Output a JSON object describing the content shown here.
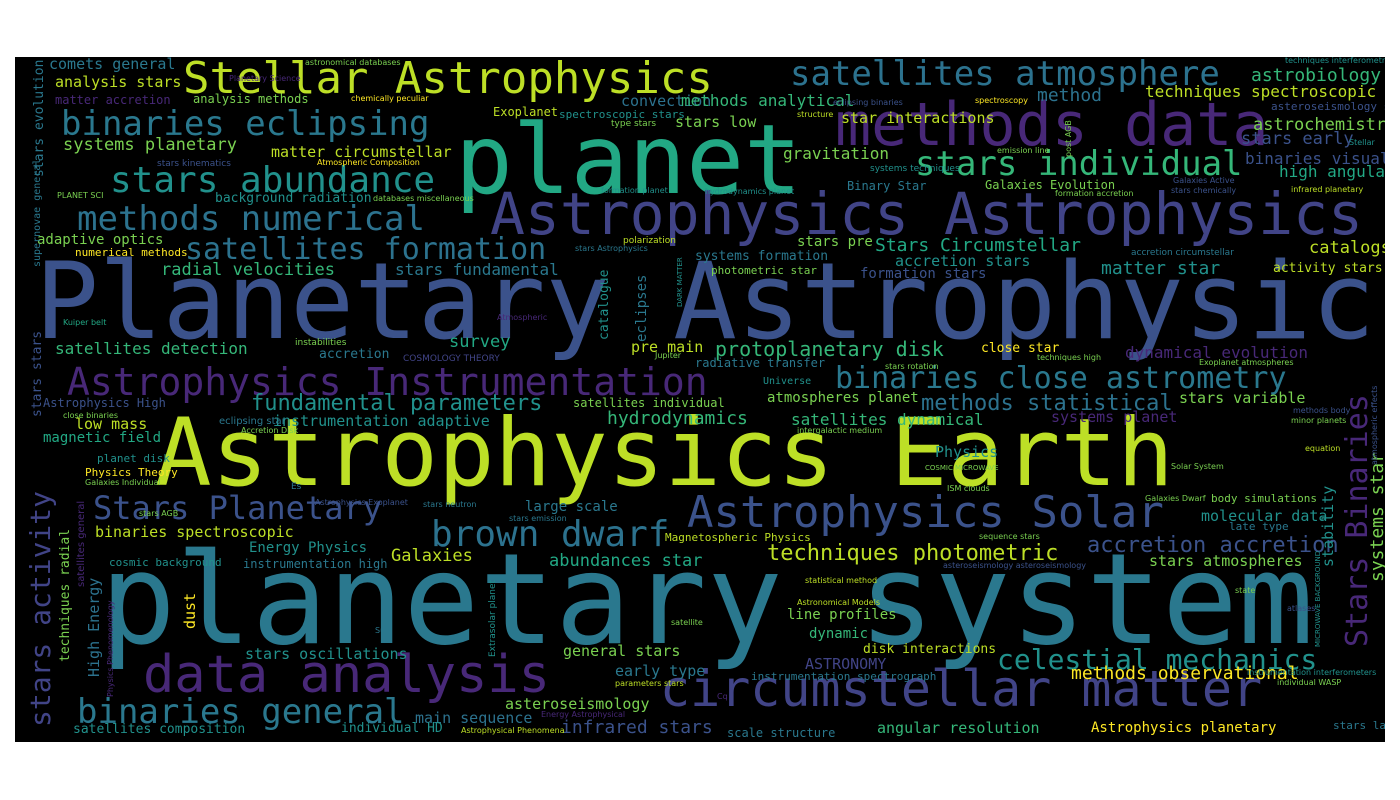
{
  "colors": {
    "background": "#000000",
    "c1": "#bddf26",
    "c2": "#2a788e",
    "c3": "#3b528b",
    "c4": "#482878",
    "c5": "#22a884",
    "c6": "#7ad151",
    "c7": "#fde725",
    "c8": "#440154",
    "c9": "#21918c",
    "c10": "#414487",
    "c11": "#35b779",
    "c12": "#2c728e"
  },
  "words": {
    "w001": "Planetary Astrophysics",
    "w002": "planetary system",
    "w003": "Astrophysics Earth",
    "w004": "planet",
    "w005": "Astrophysics Astrophysics",
    "w006": "methods data",
    "w007": "circumstellar matter",
    "w008": "data analysis",
    "w009": "Stellar Astrophysics",
    "w010": "Astrophysics Instrumentation",
    "w011": "Astrophysics Solar",
    "w012": "satellites atmosphere",
    "w013": "binaries eclipsing",
    "w014": "stars abundance",
    "w015": "stars individual",
    "w016": "methods numerical",
    "w017": "binaries close astrometry",
    "w018": "Stars Planetary",
    "w019": "brown dwarf",
    "w020": "celestial mechanics",
    "w021": "binaries general",
    "w022": "satellites formation",
    "w023": "stars activity",
    "w024": "Stars Binaries",
    "w025": "techniques photometric",
    "w026": "fundamental parameters",
    "w027": "methods statistical",
    "w028": "protoplanetary disk",
    "w029": "accretion accretion",
    "w030": "methods observational",
    "w031": "astrobiology",
    "w032": "techniques spectroscopic",
    "w033": "astrochemistry",
    "w034": "stars early",
    "w035": "binaries visual",
    "w036": "high angular",
    "w037": "systems planetary",
    "w038": "matter circumstellar",
    "w039": "gravitation",
    "w040": "comets general",
    "w041": "analysis stars",
    "w042": "analysis methods",
    "w043": "convection",
    "w044": "methods analytical",
    "w045": "method",
    "w046": "star interactions",
    "w047": "stars low",
    "w048": "Exoplanet",
    "w049": "Stars Circumstellar",
    "w050": "catalogs",
    "w051": "matter star",
    "w052": "activity stars",
    "w053": "adaptive optics",
    "w054": "radial velocities",
    "w055": "stars fundamental",
    "w056": "stars pre",
    "w057": "accretion stars",
    "w058": "formation stars",
    "w059": "systems formation",
    "w060": "satellites detection",
    "w061": "survey",
    "w062": "accretion",
    "w063": "pre main",
    "w064": "close star",
    "w065": "dynamical evolution",
    "w066": "low mass",
    "w067": "magnetic field",
    "w068": "instrumentation adaptive",
    "w069": "hydrodynamics",
    "w070": "satellites dynamical",
    "w071": "satellites individual",
    "w072": "atmospheres planet",
    "w073": "stars variable",
    "w074": "systems planet",
    "w075": "Physics",
    "w076": "Physics Theory",
    "w077": "binaries spectroscopic",
    "w078": "Energy Physics",
    "w079": "Galaxies",
    "w080": "abundances star",
    "w081": "large scale",
    "w082": "molecular data",
    "w083": "stars atmospheres",
    "w084": "systems star",
    "w085": "stability",
    "w086": "High Energy",
    "w087": "techniques radial",
    "w088": "instrumentation high",
    "w089": "dust",
    "w090": "line profiles",
    "w091": "dynamic",
    "w092": "general stars",
    "w093": "stars oscillations",
    "w094": "disk interactions",
    "w095": "ASTRONOMY",
    "w096": "early type",
    "w097": "asteroseismology",
    "w098": "main sequence",
    "w099": "satellites composition",
    "w100": "individual HD",
    "w101": "infrared stars",
    "w102": "scale structure",
    "w103": "angular resolution",
    "w104": "Astrophysics planetary",
    "w105": "stars late",
    "w106": "Binary Star",
    "w107": "Galaxies Evolution",
    "w108": "background radiation",
    "w109": "numerical methods",
    "w110": "eclipses",
    "w111": "catalogue",
    "w112": "stars evolution",
    "w113": "supernovae general",
    "w114": "stars stars",
    "w115": "Astrophysics High",
    "w116": "Magnetospheric Physics",
    "w117": "radiative transfer",
    "w118": "Universe",
    "w119": "instabilities",
    "w120": "COSMOLOGY THEORY",
    "w121": "Jupiter",
    "w122": "cosmic background",
    "w123": "Extrasolar planet",
    "w124": "photometric star",
    "w125": "polarization",
    "w126": "matter accretion",
    "w127": "chemically peculiar",
    "w128": "spectroscopic stars",
    "w129": "type stars",
    "w130": "structure",
    "w131": "eclipsing binaries",
    "w132": "spectroscopy",
    "w133": "emission line",
    "w134": "systems techniques",
    "w135": "Atmospheric Composition",
    "w136": "stars kinematics",
    "w137": "PLANET SCI",
    "w138": "databases miscellaneous",
    "w139": "formation planet",
    "w140": "hydrodynamics planet",
    "w141": "formation accretion",
    "w142": "Galaxies Active",
    "w143": "stars chemically",
    "w144": "infrared planetary",
    "w145": "post AGB",
    "w146": "Stellar",
    "w147": "astronomical databases",
    "w148": "techniques interferometric",
    "w149": "asteroseismology stars",
    "w150": "accretion circumstellar",
    "w151": "Kuiper belt",
    "w152": "Atmospheric",
    "w153": "DARK MATTER",
    "w154": "stars Astrophysics",
    "w155": "Planetary Science",
    "w156": "close binaries",
    "w157": "eclipsing star",
    "w158": "Accretion Disk",
    "w159": "planet disk",
    "w160": "Galaxies Individual",
    "w161": "Es",
    "w162": "stars AGB",
    "w163": "Astrophysics Exoplanet",
    "w164": "stars neutron",
    "w165": "stars emission",
    "w166": "Physics Phenomenology",
    "w167": "satellites general",
    "w168": "Sun",
    "w169": "statistical method",
    "w170": "Astronomical Models",
    "w171": "satellite",
    "w172": "parameters stars",
    "w173": "Cq",
    "w174": "Energy Astrophysical",
    "w175": "Astrophysical Phenomena",
    "w176": "instrumentation spectrograph",
    "w177": "techniques high",
    "w178": "stars rotation",
    "w179": "Exoplanet atmospheres",
    "w180": "intergalactic medium",
    "w181": "COSMIC MICROWAVE",
    "w182": "ISM clouds",
    "w183": "Solar System",
    "w184": "minor planets",
    "w185": "methods body",
    "w186": "equation",
    "w187": "atmospheric effects",
    "w188": "Galaxies Dwarf",
    "w189": "body simulations",
    "w190": "late type",
    "w191": "sequence stars",
    "w192": "asteroseismology asteroseismology",
    "w193": "MICROWAVE BACKGROUND",
    "w194": "state",
    "w195": "atlases",
    "w196": "instrumentation interferometers",
    "w197": "individual WASP",
    "w198": "systems planetary2"
  }
}
